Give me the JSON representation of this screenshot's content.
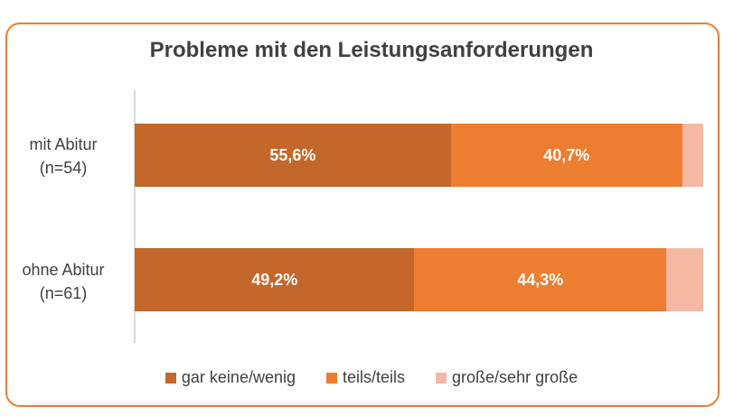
{
  "chart_data": {
    "type": "bar",
    "orientation": "horizontal",
    "stacked": true,
    "title": "Probleme mit den Leistungsanforderungen",
    "categories": [
      {
        "line1": "mit Abitur",
        "line2": "(n=54)"
      },
      {
        "line1": "ohne Abitur",
        "line2": "(n=61)"
      }
    ],
    "series": [
      {
        "name": "gar keine/wenig",
        "color": "#C3672A",
        "values": [
          55.6,
          49.2
        ],
        "labels": [
          "55,6%",
          "49,2%"
        ]
      },
      {
        "name": "teils/teils",
        "color": "#ED7D31",
        "values": [
          40.7,
          44.3
        ],
        "labels": [
          "40,7%",
          "44,3%"
        ]
      },
      {
        "name": "große/sehr große",
        "color": "#F4B8A4",
        "values": [
          3.7,
          6.5
        ],
        "labels": [
          "",
          ""
        ]
      }
    ],
    "xlim": [
      0,
      100
    ],
    "legend_position": "bottom"
  }
}
